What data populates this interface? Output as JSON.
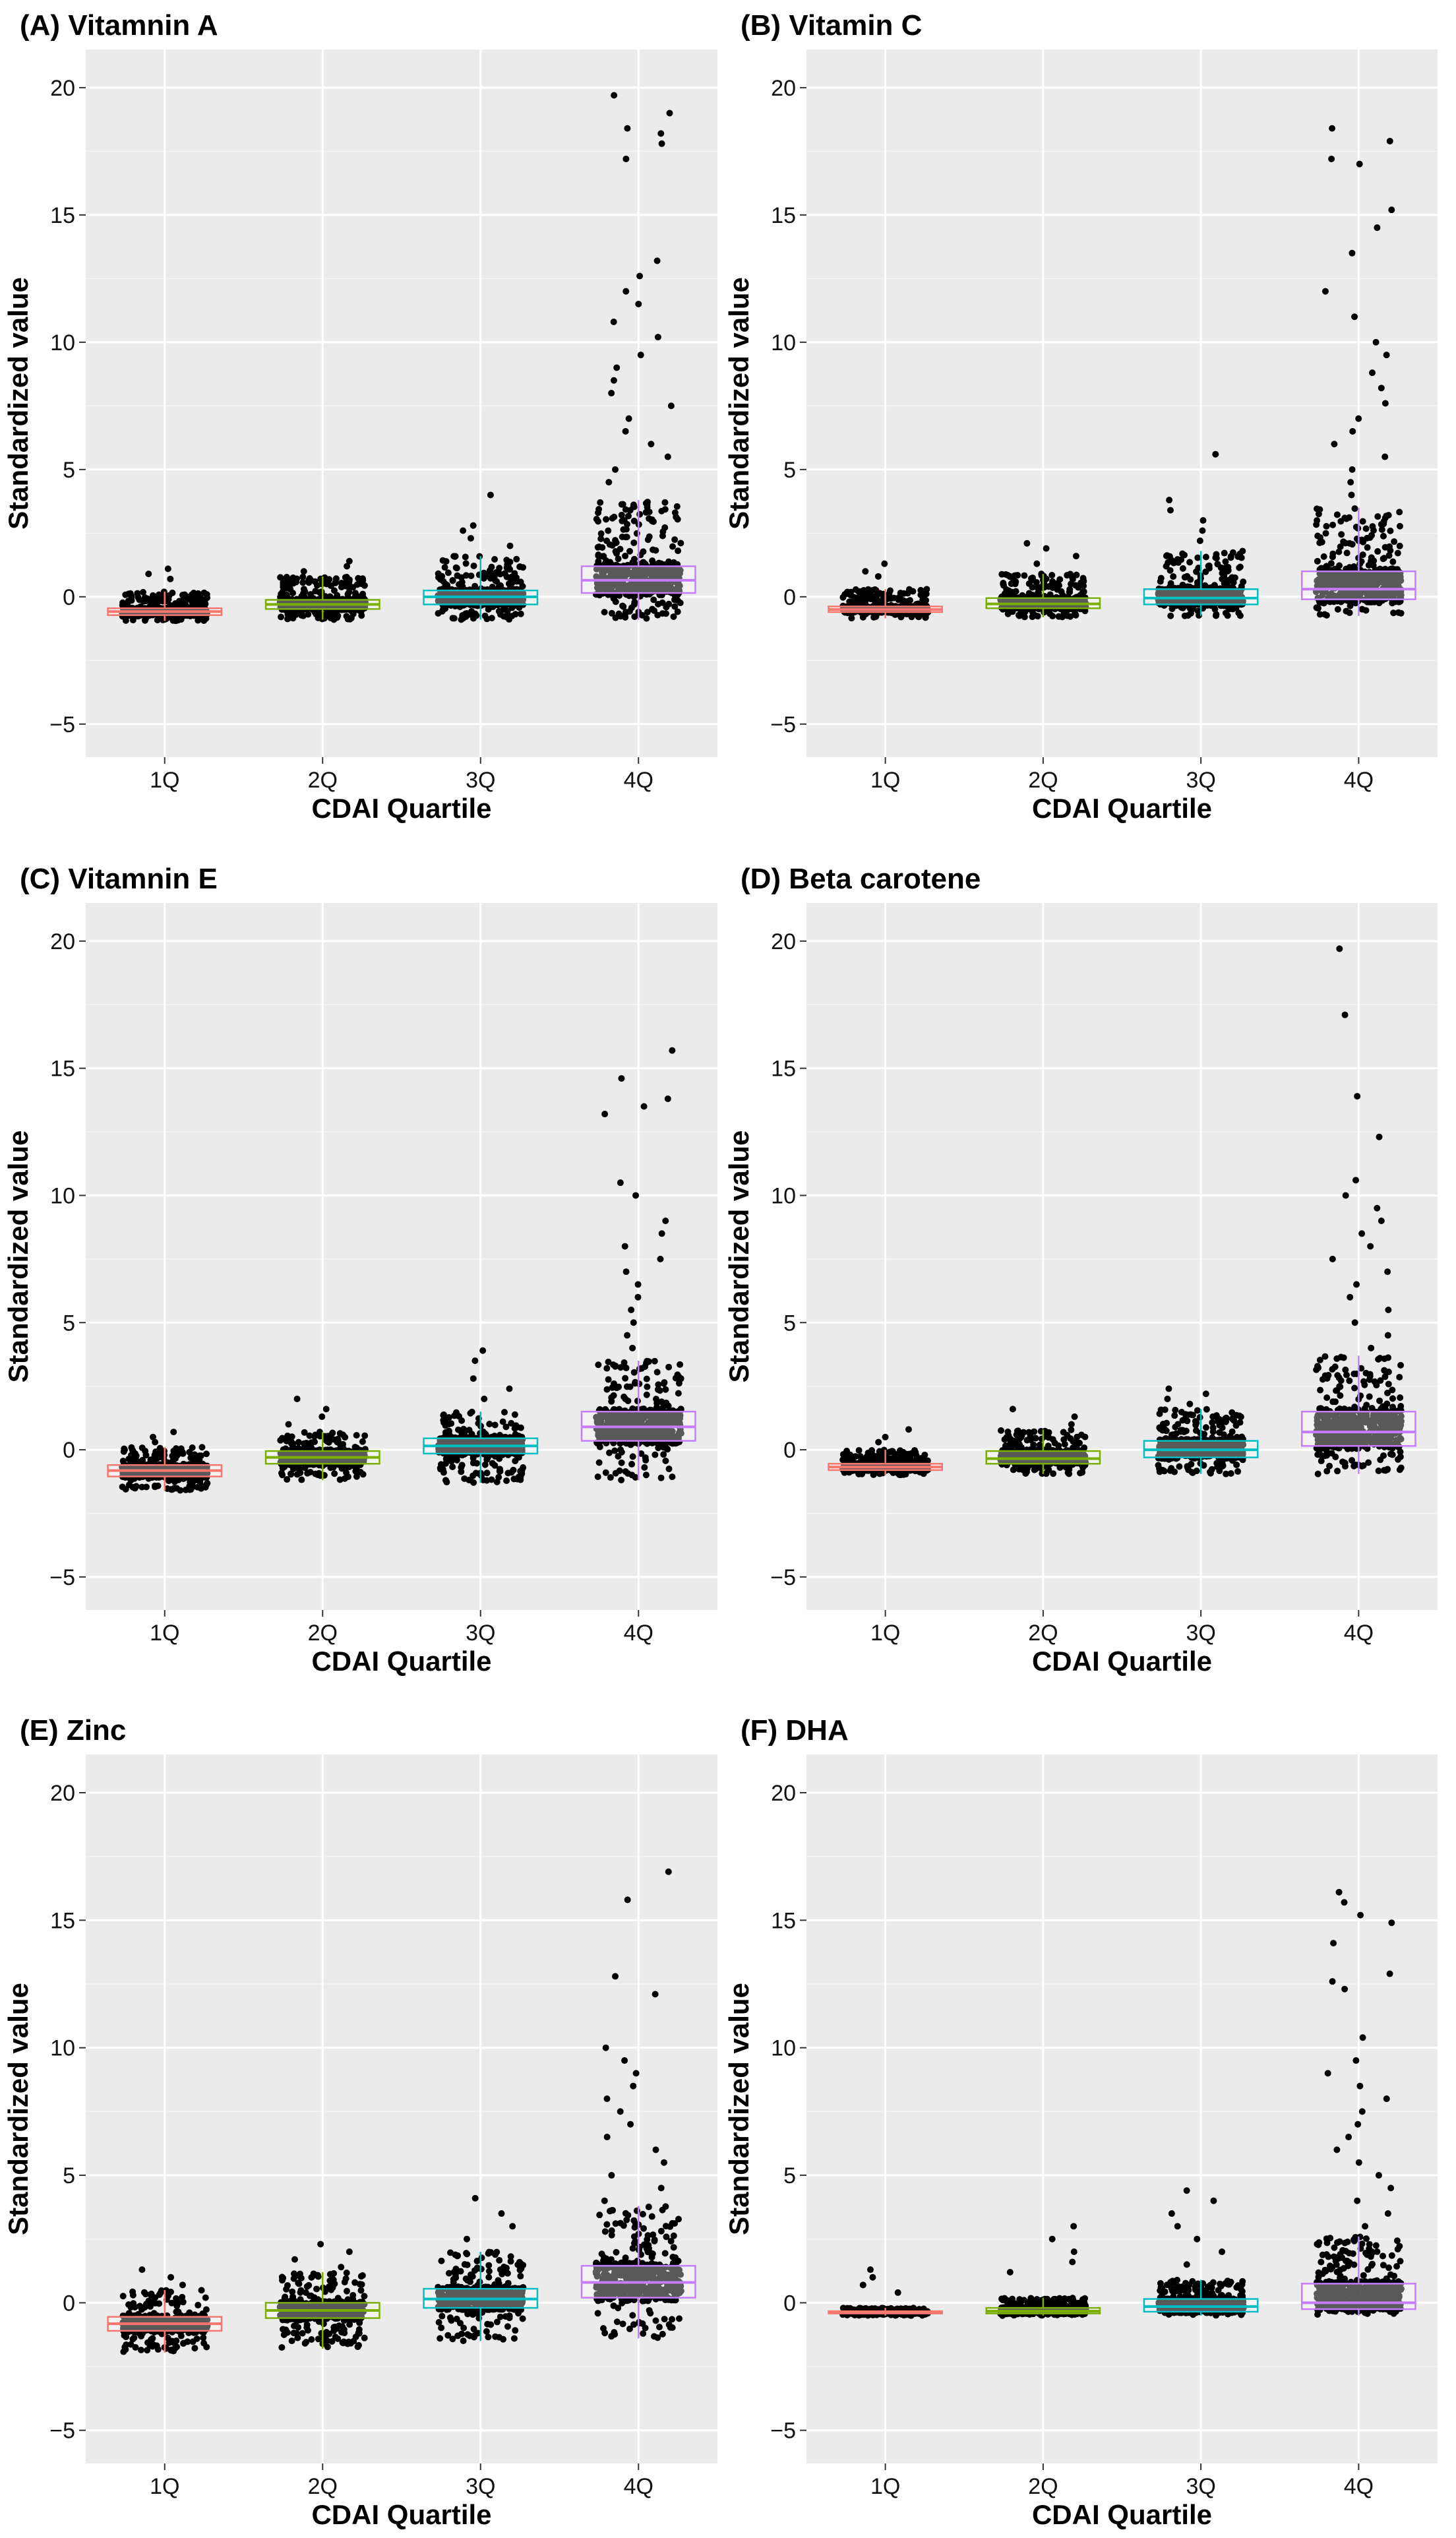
{
  "chart_data": [
    {
      "type": "box",
      "title": "(A) Vitamnin A",
      "xlabel": "CDAI Quartile",
      "ylabel": "Standardized value",
      "categories": [
        "1Q",
        "2Q",
        "3Q",
        "4Q"
      ],
      "ylim": [
        -6.3,
        21.5
      ],
      "yticks": [
        -5,
        0,
        5,
        10,
        15,
        20
      ],
      "ytick_labels": [
        "−5",
        "0",
        "5",
        "10",
        "15",
        "20"
      ],
      "boxes": [
        {
          "category": "1Q",
          "min": -0.95,
          "q1": -0.72,
          "median": -0.58,
          "q3": -0.45,
          "max": 0.2
        },
        {
          "category": "2Q",
          "min": -0.9,
          "q1": -0.48,
          "median": -0.3,
          "q3": -0.12,
          "max": 0.8
        },
        {
          "category": "3Q",
          "min": -0.9,
          "q1": -0.3,
          "median": 0.0,
          "q3": 0.25,
          "max": 1.6
        },
        {
          "category": "4Q",
          "min": -0.9,
          "q1": 0.15,
          "median": 0.65,
          "q3": 1.2,
          "max": 3.8
        }
      ],
      "outliers": [
        {
          "category": "1Q",
          "values": [
            0.7,
            0.9,
            1.1
          ]
        },
        {
          "category": "2Q",
          "values": [
            1.0,
            1.2,
            1.4
          ]
        },
        {
          "category": "3Q",
          "values": [
            2.0,
            2.3,
            2.6,
            2.8,
            4.0
          ]
        },
        {
          "category": "4Q",
          "values": [
            4.5,
            5.0,
            5.5,
            6.0,
            6.5,
            7.0,
            7.5,
            8.0,
            8.5,
            9.0,
            9.5,
            10.2,
            10.8,
            11.5,
            12.0,
            12.6,
            13.2,
            17.2,
            17.8,
            18.2,
            18.4,
            19.0,
            19.7
          ]
        }
      ]
    },
    {
      "type": "box",
      "title": "(B) Vitamin C",
      "xlabel": "CDAI Quartile",
      "ylabel": "Standardized value",
      "categories": [
        "1Q",
        "2Q",
        "3Q",
        "4Q"
      ],
      "ylim": [
        -6.3,
        21.5
      ],
      "yticks": [
        -5,
        0,
        5,
        10,
        15,
        20
      ],
      "ytick_labels": [
        "−5",
        "0",
        "5",
        "10",
        "15",
        "20"
      ],
      "boxes": [
        {
          "category": "1Q",
          "min": -0.85,
          "q1": -0.6,
          "median": -0.5,
          "q3": -0.38,
          "max": 0.3
        },
        {
          "category": "2Q",
          "min": -0.8,
          "q1": -0.45,
          "median": -0.28,
          "q3": -0.05,
          "max": 0.9
        },
        {
          "category": "3Q",
          "min": -0.75,
          "q1": -0.3,
          "median": -0.05,
          "q3": 0.3,
          "max": 1.8
        },
        {
          "category": "4Q",
          "min": -0.75,
          "q1": -0.1,
          "median": 0.3,
          "q3": 1.0,
          "max": 3.5
        }
      ],
      "outliers": [
        {
          "category": "1Q",
          "values": [
            0.8,
            1.0,
            1.3
          ]
        },
        {
          "category": "2Q",
          "values": [
            1.3,
            1.6,
            1.9,
            2.1
          ]
        },
        {
          "category": "3Q",
          "values": [
            2.2,
            2.6,
            3.0,
            3.4,
            3.8,
            5.6
          ]
        },
        {
          "category": "4Q",
          "values": [
            4.0,
            4.5,
            5.0,
            5.5,
            6.0,
            6.5,
            7.0,
            7.6,
            8.2,
            8.8,
            9.5,
            10.0,
            11.0,
            12.0,
            13.5,
            14.5,
            15.2,
            17.0,
            17.2,
            17.9,
            18.4
          ]
        }
      ]
    },
    {
      "type": "box",
      "title": "(C) Vitamnin E",
      "xlabel": "CDAI Quartile",
      "ylabel": "Standardized value",
      "categories": [
        "1Q",
        "2Q",
        "3Q",
        "4Q"
      ],
      "ylim": [
        -6.3,
        21.5
      ],
      "yticks": [
        -5,
        0,
        5,
        10,
        15,
        20
      ],
      "ytick_labels": [
        "−5",
        "0",
        "5",
        "10",
        "15",
        "20"
      ],
      "boxes": [
        {
          "category": "1Q",
          "min": -1.6,
          "q1": -1.05,
          "median": -0.82,
          "q3": -0.6,
          "max": 0.1
        },
        {
          "category": "2Q",
          "min": -1.2,
          "q1": -0.55,
          "median": -0.3,
          "q3": -0.05,
          "max": 0.7
        },
        {
          "category": "3Q",
          "min": -1.3,
          "q1": -0.15,
          "median": 0.15,
          "q3": 0.45,
          "max": 1.5
        },
        {
          "category": "4Q",
          "min": -1.2,
          "q1": 0.35,
          "median": 0.9,
          "q3": 1.5,
          "max": 3.5
        }
      ],
      "outliers": [
        {
          "category": "1Q",
          "values": [
            0.3,
            0.5,
            0.7
          ]
        },
        {
          "category": "2Q",
          "values": [
            1.0,
            1.3,
            1.6,
            2.0
          ]
        },
        {
          "category": "3Q",
          "values": [
            2.0,
            2.4,
            2.8,
            3.5,
            3.9
          ]
        },
        {
          "category": "4Q",
          "values": [
            4.0,
            4.5,
            5.0,
            5.5,
            6.0,
            6.5,
            7.0,
            7.5,
            8.0,
            8.5,
            9.0,
            10.0,
            10.5,
            13.2,
            13.5,
            13.8,
            14.6,
            15.7
          ]
        }
      ]
    },
    {
      "type": "box",
      "title": "(D) Beta carotene",
      "xlabel": "CDAI Quartile",
      "ylabel": "Standardized value",
      "categories": [
        "1Q",
        "2Q",
        "3Q",
        "4Q"
      ],
      "ylim": [
        -6.3,
        21.5
      ],
      "yticks": [
        -5,
        0,
        5,
        10,
        15,
        20
      ],
      "ytick_labels": [
        "−5",
        "0",
        "5",
        "10",
        "15",
        "20"
      ],
      "boxes": [
        {
          "category": "1Q",
          "min": -1.0,
          "q1": -0.8,
          "median": -0.68,
          "q3": -0.55,
          "max": 0.0
        },
        {
          "category": "2Q",
          "min": -0.95,
          "q1": -0.55,
          "median": -0.35,
          "q3": -0.05,
          "max": 0.8
        },
        {
          "category": "3Q",
          "min": -0.95,
          "q1": -0.3,
          "median": 0.0,
          "q3": 0.35,
          "max": 1.6
        },
        {
          "category": "4Q",
          "min": -0.95,
          "q1": 0.15,
          "median": 0.7,
          "q3": 1.5,
          "max": 3.7
        }
      ],
      "outliers": [
        {
          "category": "1Q",
          "values": [
            0.3,
            0.5,
            0.8
          ]
        },
        {
          "category": "2Q",
          "values": [
            1.0,
            1.3,
            1.6
          ]
        },
        {
          "category": "3Q",
          "values": [
            1.8,
            2.0,
            2.2,
            2.4
          ]
        },
        {
          "category": "4Q",
          "values": [
            4.0,
            4.5,
            5.0,
            5.5,
            6.0,
            6.5,
            7.0,
            7.5,
            8.0,
            8.5,
            9.0,
            9.5,
            10.0,
            10.6,
            12.3,
            13.9,
            17.1,
            19.7
          ]
        }
      ]
    },
    {
      "type": "box",
      "title": "(E) Zinc",
      "xlabel": "CDAI Quartile",
      "ylabel": "Standardized value",
      "categories": [
        "1Q",
        "2Q",
        "3Q",
        "4Q"
      ],
      "ylim": [
        -6.3,
        21.5
      ],
      "yticks": [
        -5,
        0,
        5,
        10,
        15,
        20
      ],
      "ytick_labels": [
        "−5",
        "0",
        "5",
        "10",
        "15",
        "20"
      ],
      "boxes": [
        {
          "category": "1Q",
          "min": -1.95,
          "q1": -1.1,
          "median": -0.82,
          "q3": -0.55,
          "max": 0.5
        },
        {
          "category": "2Q",
          "min": -1.8,
          "q1": -0.6,
          "median": -0.3,
          "q3": 0.0,
          "max": 1.2
        },
        {
          "category": "3Q",
          "min": -1.5,
          "q1": -0.2,
          "median": 0.15,
          "q3": 0.55,
          "max": 2.0
        },
        {
          "category": "4Q",
          "min": -1.4,
          "q1": 0.2,
          "median": 0.8,
          "q3": 1.45,
          "max": 3.8
        }
      ],
      "outliers": [
        {
          "category": "1Q",
          "values": [
            0.7,
            1.0,
            1.3
          ]
        },
        {
          "category": "2Q",
          "values": [
            1.4,
            1.7,
            2.0,
            2.3
          ]
        },
        {
          "category": "3Q",
          "values": [
            2.5,
            3.0,
            3.5,
            4.1
          ]
        },
        {
          "category": "4Q",
          "values": [
            4.0,
            4.5,
            5.0,
            5.5,
            6.0,
            6.5,
            7.0,
            7.5,
            8.0,
            8.5,
            9.0,
            9.5,
            10.0,
            12.1,
            12.8,
            15.8,
            16.9
          ]
        }
      ]
    },
    {
      "type": "box",
      "title": "(F) DHA",
      "xlabel": "CDAI Quartile",
      "ylabel": "Standardized value",
      "categories": [
        "1Q",
        "2Q",
        "3Q",
        "4Q"
      ],
      "ylim": [
        -6.3,
        21.5
      ],
      "yticks": [
        -5,
        0,
        5,
        10,
        15,
        20
      ],
      "ytick_labels": [
        "−5",
        "0",
        "5",
        "10",
        "15",
        "20"
      ],
      "boxes": [
        {
          "category": "1Q",
          "min": -0.5,
          "q1": -0.42,
          "median": -0.38,
          "q3": -0.33,
          "max": -0.2
        },
        {
          "category": "2Q",
          "min": -0.5,
          "q1": -0.42,
          "median": -0.33,
          "q3": -0.2,
          "max": 0.2
        },
        {
          "category": "3Q",
          "min": -0.5,
          "q1": -0.35,
          "median": -0.15,
          "q3": 0.15,
          "max": 0.9
        },
        {
          "category": "4Q",
          "min": -0.5,
          "q1": -0.25,
          "median": 0.0,
          "q3": 0.75,
          "max": 2.6
        }
      ],
      "outliers": [
        {
          "category": "1Q",
          "values": [
            0.4,
            0.7,
            1.0,
            1.3
          ]
        },
        {
          "category": "2Q",
          "values": [
            1.2,
            1.6,
            2.0,
            2.5,
            3.0
          ]
        },
        {
          "category": "3Q",
          "values": [
            1.5,
            2.0,
            2.5,
            3.0,
            3.5,
            4.0,
            4.4
          ]
        },
        {
          "category": "4Q",
          "values": [
            3.0,
            3.5,
            4.0,
            4.5,
            5.0,
            5.5,
            6.0,
            6.5,
            7.0,
            7.5,
            8.0,
            8.5,
            9.0,
            9.5,
            10.4,
            12.3,
            12.6,
            12.9,
            14.1,
            14.9,
            15.2,
            15.7,
            16.1
          ]
        }
      ]
    }
  ],
  "colors": {
    "page_background": "#ffffff",
    "panel_background": "#ebebeb",
    "grid_major": "#ffffff",
    "grid_minor": "#f5f5f5",
    "points": "#000000",
    "box_1Q": "#f8766d",
    "box_2Q": "#7cae00",
    "box_3Q": "#00bfc4",
    "box_4Q": "#c77cff"
  }
}
